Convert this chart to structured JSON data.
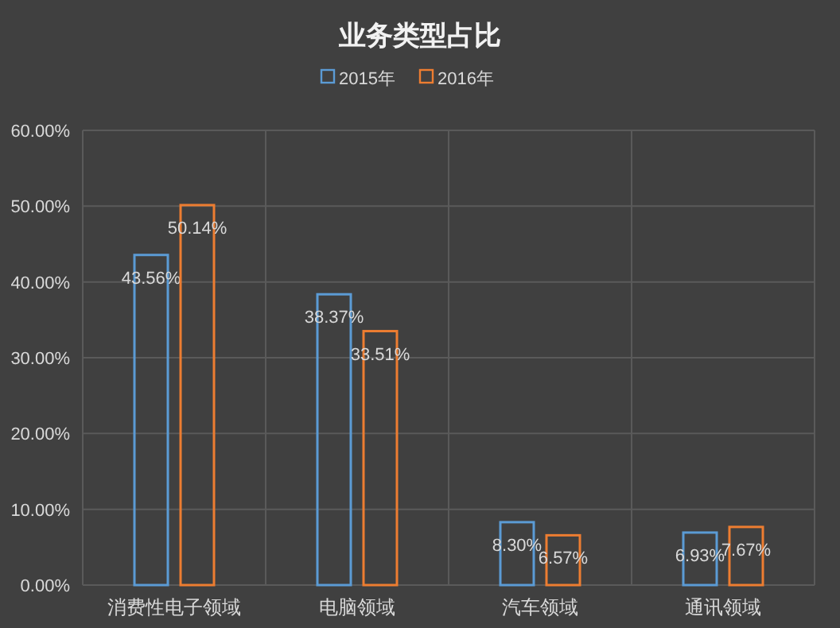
{
  "chart_data": {
    "type": "bar",
    "title": "业务类型占比",
    "categories": [
      "消费性电子领域",
      "电脑领域",
      "汽车领域",
      "通讯领域"
    ],
    "series": [
      {
        "name": "2015年",
        "color": "#5b9bd5",
        "values": [
          43.56,
          38.37,
          8.3,
          6.93
        ],
        "value_labels": [
          "43.56%",
          "38.37%",
          "8.30%",
          "6.93%"
        ]
      },
      {
        "name": "2016年",
        "color": "#ed7d31",
        "values": [
          50.14,
          33.51,
          6.57,
          7.67
        ],
        "value_labels": [
          "50.14%",
          "33.51%",
          "6.57%",
          "7.67%"
        ]
      }
    ],
    "ylim": [
      0,
      60
    ],
    "yticks": [
      {
        "value": 0,
        "label": "0.00%"
      },
      {
        "value": 10,
        "label": "10.00%"
      },
      {
        "value": 20,
        "label": "20.00%"
      },
      {
        "value": 30,
        "label": "30.00%"
      },
      {
        "value": 40,
        "label": "40.00%"
      },
      {
        "value": 50,
        "label": "50.00%"
      },
      {
        "value": 60,
        "label": "60.00%"
      }
    ],
    "grid": true,
    "legend": "top"
  }
}
